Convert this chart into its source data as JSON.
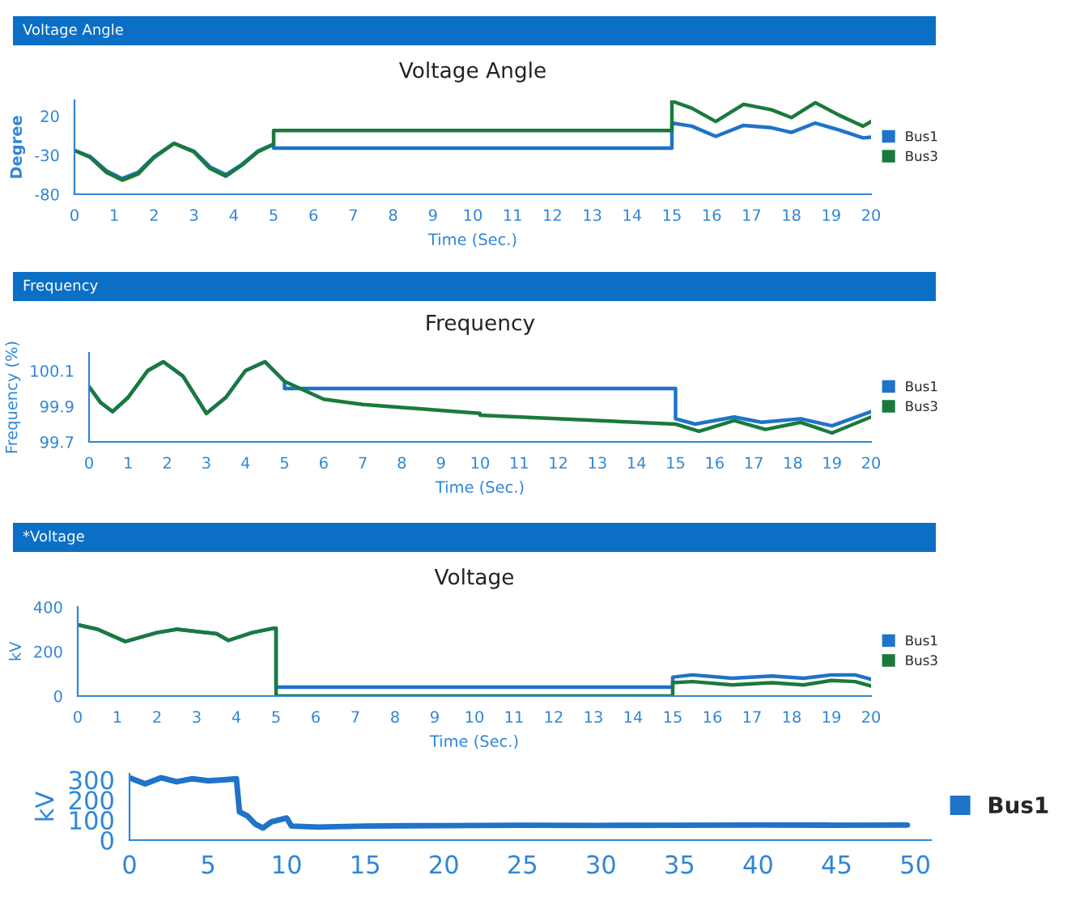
{
  "chart_data": [
    {
      "type": "line",
      "title": "Voltage Angle",
      "xlabel": "Time (Sec.)",
      "ylabel": "Degree",
      "annotations": [
        "Voltage Angle"
      ],
      "xlim": [
        0,
        20
      ],
      "ylim": [
        -80,
        40
      ],
      "xticks": [
        0,
        1,
        2,
        3,
        4,
        5,
        6,
        7,
        8,
        9,
        10,
        11,
        12,
        13,
        14,
        15,
        16,
        17,
        18,
        19,
        20
      ],
      "yticks": [
        -80,
        -30,
        20
      ],
      "grid": false,
      "legend": "right",
      "marker": "none",
      "line_style": "solid",
      "series": [
        {
          "name": "Bus1",
          "color": "#1f73c8",
          "x": [
            0,
            0.4,
            0.8,
            1.2,
            1.6,
            2.0,
            2.5,
            3.0,
            3.4,
            3.8,
            4.2,
            4.6,
            5,
            5,
            7,
            10,
            15,
            15,
            15.5,
            16.1,
            16.8,
            17.5,
            18,
            18.6,
            19.2,
            19.8,
            20
          ],
          "values": [
            -24,
            -32,
            -50,
            -60,
            -52,
            -32,
            -15,
            -25,
            -45,
            -55,
            -42,
            -25,
            -16,
            -21,
            -21,
            -21,
            -21,
            11,
            7,
            -6,
            8,
            5,
            -1,
            11,
            2,
            -8,
            -7
          ]
        },
        {
          "name": "Bus3",
          "color": "#1a7a3c",
          "x": [
            0,
            0.4,
            0.8,
            1.2,
            1.6,
            2.0,
            2.5,
            3.0,
            3.4,
            3.8,
            4.2,
            4.6,
            5,
            5,
            7,
            10,
            15,
            15,
            15.5,
            16.1,
            16.8,
            17.5,
            18,
            18.6,
            19.2,
            19.8,
            20
          ],
          "values": [
            -24,
            -33,
            -52,
            -62,
            -54,
            -33,
            -15,
            -26,
            -47,
            -57,
            -43,
            -26,
            -16,
            1.5,
            1.5,
            1.5,
            1.5,
            39,
            30,
            13,
            35,
            28,
            18,
            37,
            21,
            7,
            13
          ]
        }
      ]
    },
    {
      "type": "line",
      "title": "Frequency",
      "xlabel": "Time (Sec.)",
      "ylabel": "Frequency (%)",
      "annotations": [
        "Frequency"
      ],
      "xlim": [
        0,
        20
      ],
      "ylim": [
        99.7,
        100.2
      ],
      "xticks": [
        0,
        1,
        2,
        3,
        4,
        5,
        6,
        7,
        8,
        9,
        10,
        11,
        12,
        13,
        14,
        15,
        16,
        17,
        18,
        19,
        20
      ],
      "yticks": [
        99.7,
        99.9,
        100.1
      ],
      "grid": false,
      "legend": "right",
      "marker": "none",
      "line_style": "solid",
      "series": [
        {
          "name": "Bus1",
          "color": "#1f73c8",
          "x": [
            0,
            0.3,
            0.6,
            1.0,
            1.5,
            1.9,
            2.4,
            3.0,
            3.5,
            4.0,
            4.5,
            5,
            5,
            10,
            15,
            15,
            15.5,
            16.5,
            17.2,
            18.2,
            19,
            20
          ],
          "values": [
            100.01,
            99.92,
            99.87,
            99.95,
            100.1,
            100.15,
            100.07,
            99.86,
            99.95,
            100.1,
            100.15,
            100.04,
            100.0,
            100.0,
            100.0,
            99.83,
            99.8,
            99.84,
            99.81,
            99.83,
            99.79,
            99.87
          ]
        },
        {
          "name": "Bus3",
          "color": "#1a7a3c",
          "x": [
            0,
            0.3,
            0.6,
            1.0,
            1.5,
            1.9,
            2.4,
            3.0,
            3.5,
            4.0,
            4.5,
            5,
            6,
            7,
            10,
            10,
            15,
            15.6,
            16.5,
            17.3,
            18.2,
            19,
            20
          ],
          "values": [
            100.01,
            99.92,
            99.87,
            99.95,
            100.1,
            100.15,
            100.07,
            99.86,
            99.95,
            100.1,
            100.15,
            100.04,
            99.94,
            99.91,
            99.86,
            99.85,
            99.8,
            99.76,
            99.82,
            99.77,
            99.81,
            99.75,
            99.84
          ]
        }
      ]
    },
    {
      "type": "line",
      "title": "Voltage",
      "xlabel": "Time (Sec.)",
      "ylabel": "kV",
      "annotations": [
        "*Voltage"
      ],
      "xlim": [
        0,
        20
      ],
      "ylim": [
        0,
        400
      ],
      "xticks": [
        0,
        1,
        2,
        3,
        4,
        5,
        6,
        7,
        8,
        9,
        10,
        11,
        12,
        13,
        14,
        15,
        16,
        17,
        18,
        19,
        20
      ],
      "yticks": [
        0,
        200,
        400
      ],
      "grid": false,
      "legend": "right",
      "marker": "none",
      "line_style": "solid",
      "series": [
        {
          "name": "Bus1",
          "color": "#1f73c8",
          "x": [
            0,
            0.5,
            1.2,
            2,
            2.5,
            3.5,
            3.8,
            4.4,
            4.95,
            5,
            5,
            10,
            15,
            15,
            15.5,
            16.5,
            17.5,
            18.3,
            19,
            19.6,
            20
          ],
          "values": [
            320,
            300,
            245,
            285,
            300,
            280,
            250,
            285,
            305,
            305,
            40,
            40,
            40,
            85,
            95,
            80,
            90,
            80,
            95,
            95,
            75
          ]
        },
        {
          "name": "Bus3",
          "color": "#1a7a3c",
          "x": [
            0,
            0.5,
            1.2,
            2,
            2.5,
            3.5,
            3.8,
            4.4,
            4.95,
            5,
            5,
            10,
            15,
            15,
            15.5,
            16.5,
            17.5,
            18.3,
            19,
            19.6,
            20
          ],
          "values": [
            320,
            300,
            245,
            285,
            300,
            280,
            250,
            285,
            305,
            305,
            0,
            0,
            0,
            60,
            65,
            50,
            60,
            50,
            70,
            65,
            45
          ]
        }
      ]
    },
    {
      "type": "line",
      "ylabel": "kV",
      "xlim": [
        0,
        51
      ],
      "ylim": [
        0,
        330
      ],
      "xticks": [
        0,
        5,
        10,
        15,
        20,
        25,
        30,
        35,
        40,
        45,
        50
      ],
      "yticks": [
        0,
        100,
        200,
        300
      ],
      "grid": false,
      "legend": "right",
      "marker": "none",
      "line_style": "solid",
      "series": [
        {
          "name": "Bus1",
          "color": "#1f73c8",
          "x": [
            0,
            1,
            2,
            3,
            4,
            5,
            6,
            6.8,
            7,
            7.5,
            8,
            8.5,
            9,
            10,
            10.3,
            12,
            15,
            20,
            25,
            30,
            35,
            40,
            45,
            49.5
          ],
          "values": [
            310,
            280,
            310,
            290,
            305,
            295,
            300,
            305,
            140,
            120,
            80,
            60,
            90,
            110,
            70,
            65,
            70,
            72,
            74,
            73,
            74,
            75,
            74,
            75
          ]
        }
      ]
    }
  ]
}
